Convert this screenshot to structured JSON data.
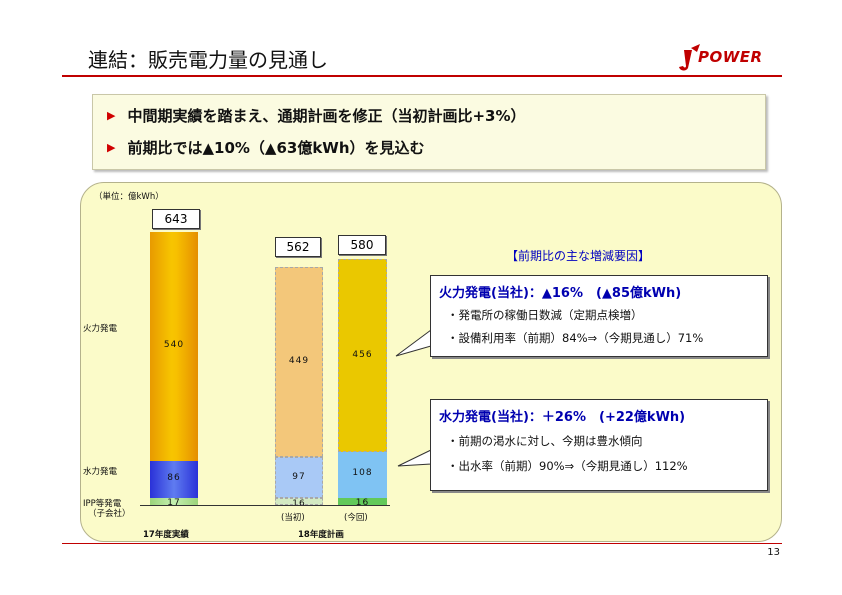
{
  "header": {
    "title": "連結：販売電力量の見通し",
    "logo_text": "POWER",
    "page_number": "13"
  },
  "summary": {
    "bullets": [
      "中間期実績を踏まえ、通期計画を修正（当初計画比+3%）",
      "前期比では▲10%（▲63億kWh）を見込む"
    ]
  },
  "chart_data": {
    "type": "bar",
    "stacked": true,
    "unit_label": "（単位：億kWh）",
    "categories": [
      "17年度実績",
      "(当初)",
      "(今回)"
    ],
    "group_label": "18年度計画",
    "row_labels": {
      "thermal": "火力発電",
      "hydro": "水力発電",
      "ipp": "IPP等発電",
      "ipp_sub": "（子会社）"
    },
    "series": [
      {
        "name": "IPP等発電",
        "values": [
          17,
          16,
          16
        ]
      },
      {
        "name": "水力発電",
        "values": [
          86,
          97,
          108
        ]
      },
      {
        "name": "火力発電",
        "values": [
          540,
          449,
          456
        ]
      }
    ],
    "totals": [
      643,
      562,
      580
    ],
    "segment_labels": {
      "ipp": [
        "17",
        "16",
        "16"
      ],
      "hydro": [
        "86",
        "97",
        "108"
      ],
      "thermal": [
        "540",
        "449",
        "456"
      ]
    }
  },
  "factors": {
    "title": "【前期比の主な増減要因】",
    "thermal": {
      "head": "火力発電(当社)：▲16%　(▲85億kWh)",
      "lines": [
        "・発電所の稼働日数減（定期点検増）",
        "・設備利用率（前期）84%⇒（今期見通し）71%"
      ]
    },
    "hydro": {
      "head": "水力発電(当社)：＋26%　(+22億kWh)",
      "lines": [
        "・前期の渇水に対し、今期は豊水傾向",
        "・出水率（前期）90%⇒（今期見通し）112%"
      ]
    }
  },
  "colors": {
    "accent_red": "#c00000",
    "factor_title_blue": "#0000c0"
  }
}
